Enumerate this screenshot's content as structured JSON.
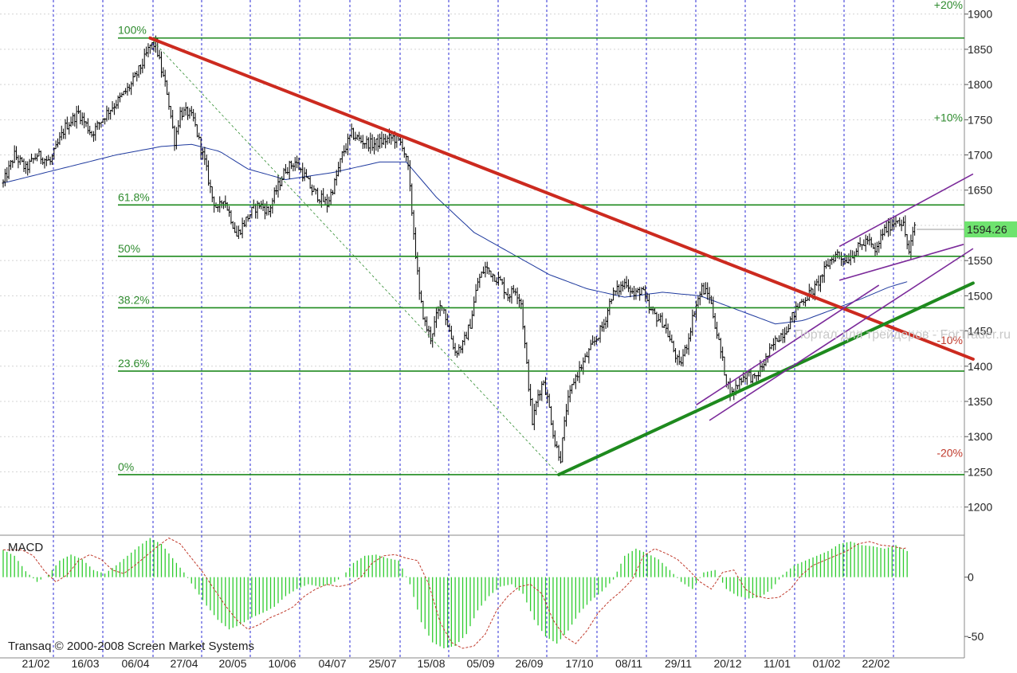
{
  "chart_data": {
    "type": "candlestick",
    "source_note": "Transaq © 2000-2008 Screen Market Systems",
    "watermark": "Портал для трейдеров - ForTrader.ru",
    "x_labels": [
      "21/02",
      "16/03",
      "06/04",
      "27/04",
      "20/05",
      "10/06",
      "04/07",
      "25/07",
      "15/08",
      "05/09",
      "26/09",
      "17/10",
      "08/11",
      "29/11",
      "20/12",
      "11/01",
      "01/02",
      "22/02"
    ],
    "price_axis": {
      "ylim": [
        1160,
        1920
      ],
      "ticks": [
        1200,
        1250,
        1300,
        1350,
        1400,
        1450,
        1500,
        1550,
        1600,
        1650,
        1700,
        1750,
        1800,
        1850,
        1900
      ]
    },
    "last_price": "1594.26",
    "percent_marks": [
      {
        "label": "+20%",
        "value": 1913,
        "sign": "pos"
      },
      {
        "label": "+10%",
        "value": 1753,
        "sign": "pos"
      },
      {
        "label": "-10%",
        "value": 1437,
        "sign": "neg"
      },
      {
        "label": "-20%",
        "value": 1277,
        "sign": "neg"
      }
    ],
    "fibonacci": [
      {
        "label": "100%",
        "value": 1866
      },
      {
        "label": "61.8%",
        "value": 1629
      },
      {
        "label": "50%",
        "value": 1556
      },
      {
        "label": "38.2%",
        "value": 1483
      },
      {
        "label": "23.6%",
        "value": 1393
      },
      {
        "label": "0%",
        "value": 1246
      }
    ],
    "series_anchors": [
      [
        0,
        1660
      ],
      [
        6,
        1700
      ],
      [
        12,
        1680
      ],
      [
        18,
        1700
      ],
      [
        25,
        1690
      ],
      [
        33,
        1740
      ],
      [
        40,
        1760
      ],
      [
        47,
        1730
      ],
      [
        55,
        1760
      ],
      [
        62,
        1780
      ],
      [
        68,
        1800
      ],
      [
        74,
        1830
      ],
      [
        78,
        1855
      ],
      [
        81,
        1858
      ],
      [
        84,
        1820
      ],
      [
        87,
        1790
      ],
      [
        91,
        1720
      ],
      [
        94,
        1760
      ],
      [
        98,
        1760
      ],
      [
        101,
        1750
      ],
      [
        104,
        1720
      ],
      [
        107,
        1690
      ],
      [
        111,
        1640
      ],
      [
        114,
        1620
      ],
      [
        117,
        1640
      ],
      [
        121,
        1610
      ],
      [
        124,
        1585
      ],
      [
        127,
        1600
      ],
      [
        132,
        1620
      ],
      [
        136,
        1630
      ],
      [
        141,
        1620
      ],
      [
        145,
        1650
      ],
      [
        150,
        1680
      ],
      [
        155,
        1690
      ],
      [
        160,
        1670
      ],
      [
        164,
        1650
      ],
      [
        168,
        1640
      ],
      [
        172,
        1630
      ],
      [
        176,
        1660
      ],
      [
        180,
        1700
      ],
      [
        185,
        1730
      ],
      [
        190,
        1720
      ],
      [
        196,
        1715
      ],
      [
        202,
        1720
      ],
      [
        207,
        1725
      ],
      [
        212,
        1715
      ],
      [
        215,
        1680
      ],
      [
        218,
        1590
      ],
      [
        221,
        1500
      ],
      [
        224,
        1460
      ],
      [
        227,
        1440
      ],
      [
        230,
        1470
      ],
      [
        233,
        1490
      ],
      [
        236,
        1460
      ],
      [
        240,
        1420
      ],
      [
        244,
        1430
      ],
      [
        248,
        1460
      ],
      [
        252,
        1520
      ],
      [
        256,
        1540
      ],
      [
        260,
        1530
      ],
      [
        264,
        1520
      ],
      [
        268,
        1500
      ],
      [
        272,
        1510
      ],
      [
        275,
        1490
      ],
      [
        278,
        1400
      ],
      [
        281,
        1320
      ],
      [
        284,
        1360
      ],
      [
        287,
        1380
      ],
      [
        290,
        1340
      ],
      [
        293,
        1290
      ],
      [
        296,
        1270
      ],
      [
        299,
        1340
      ],
      [
        303,
        1380
      ],
      [
        307,
        1400
      ],
      [
        311,
        1420
      ],
      [
        315,
        1440
      ],
      [
        319,
        1460
      ],
      [
        323,
        1500
      ],
      [
        327,
        1510
      ],
      [
        331,
        1520
      ],
      [
        335,
        1500
      ],
      [
        339,
        1510
      ],
      [
        343,
        1480
      ],
      [
        347,
        1470
      ],
      [
        351,
        1460
      ],
      [
        355,
        1430
      ],
      [
        359,
        1400
      ],
      [
        363,
        1430
      ],
      [
        367,
        1480
      ],
      [
        371,
        1510
      ],
      [
        375,
        1500
      ],
      [
        378,
        1460
      ],
      [
        381,
        1420
      ],
      [
        384,
        1380
      ],
      [
        387,
        1360
      ],
      [
        391,
        1380
      ],
      [
        395,
        1390
      ],
      [
        399,
        1380
      ],
      [
        403,
        1400
      ],
      [
        407,
        1420
      ],
      [
        411,
        1440
      ],
      [
        415,
        1450
      ],
      [
        419,
        1470
      ],
      [
        423,
        1490
      ],
      [
        427,
        1500
      ],
      [
        431,
        1510
      ],
      [
        435,
        1530
      ],
      [
        439,
        1550
      ],
      [
        443,
        1560
      ],
      [
        447,
        1550
      ],
      [
        451,
        1560
      ],
      [
        455,
        1570
      ],
      [
        459,
        1580
      ],
      [
        463,
        1560
      ],
      [
        467,
        1590
      ],
      [
        471,
        1600
      ],
      [
        475,
        1610
      ],
      [
        478,
        1600
      ],
      [
        481,
        1560
      ],
      [
        484,
        1600
      ]
    ],
    "moving_average_anchors": [
      [
        0,
        1660
      ],
      [
        30,
        1680
      ],
      [
        60,
        1700
      ],
      [
        84,
        1712
      ],
      [
        100,
        1715
      ],
      [
        115,
        1705
      ],
      [
        130,
        1680
      ],
      [
        150,
        1665
      ],
      [
        175,
        1675
      ],
      [
        200,
        1690
      ],
      [
        214,
        1690
      ],
      [
        230,
        1640
      ],
      [
        250,
        1590
      ],
      [
        270,
        1560
      ],
      [
        290,
        1530
      ],
      [
        310,
        1510
      ],
      [
        330,
        1498
      ],
      [
        350,
        1505
      ],
      [
        370,
        1500
      ],
      [
        390,
        1480
      ],
      [
        410,
        1460
      ],
      [
        425,
        1465
      ],
      [
        440,
        1480
      ],
      [
        455,
        1495
      ],
      [
        470,
        1512
      ],
      [
        480,
        1520
      ]
    ],
    "trendlines": [
      {
        "name": "resistance",
        "color": "#cc2a1f",
        "from": [
          78,
          1866
        ],
        "to": [
          515,
          1410
        ]
      },
      {
        "name": "support",
        "color": "#1e8a1e",
        "from": [
          295,
          1246
        ],
        "to": [
          515,
          1518
        ]
      }
    ],
    "channel_lines_color": "#7b2a9a",
    "macd": {
      "label": "MACD",
      "ylim": [
        -64,
        34
      ],
      "ticks": [
        0,
        -50
      ],
      "anchors": [
        [
          0,
          23
        ],
        [
          6,
          18
        ],
        [
          12,
          5
        ],
        [
          18,
          -4
        ],
        [
          24,
          2
        ],
        [
          30,
          14
        ],
        [
          36,
          19
        ],
        [
          42,
          15
        ],
        [
          48,
          6
        ],
        [
          54,
          3
        ],
        [
          60,
          10
        ],
        [
          66,
          18
        ],
        [
          72,
          26
        ],
        [
          78,
          33
        ],
        [
          84,
          28
        ],
        [
          90,
          16
        ],
        [
          96,
          4
        ],
        [
          102,
          -10
        ],
        [
          108,
          -24
        ],
        [
          114,
          -36
        ],
        [
          120,
          -44
        ],
        [
          126,
          -40
        ],
        [
          132,
          -34
        ],
        [
          138,
          -30
        ],
        [
          144,
          -25
        ],
        [
          150,
          -16
        ],
        [
          156,
          -10
        ],
        [
          162,
          -6
        ],
        [
          168,
          -8
        ],
        [
          174,
          -6
        ],
        [
          180,
          0
        ],
        [
          186,
          12
        ],
        [
          192,
          18
        ],
        [
          198,
          19
        ],
        [
          204,
          16
        ],
        [
          210,
          14
        ],
        [
          216,
          -6
        ],
        [
          222,
          -38
        ],
        [
          228,
          -55
        ],
        [
          234,
          -60
        ],
        [
          240,
          -58
        ],
        [
          246,
          -48
        ],
        [
          252,
          -28
        ],
        [
          258,
          -16
        ],
        [
          264,
          -8
        ],
        [
          270,
          -6
        ],
        [
          276,
          -14
        ],
        [
          282,
          -36
        ],
        [
          288,
          -50
        ],
        [
          294,
          -56
        ],
        [
          300,
          -45
        ],
        [
          306,
          -30
        ],
        [
          312,
          -20
        ],
        [
          318,
          -12
        ],
        [
          324,
          -2
        ],
        [
          330,
          18
        ],
        [
          336,
          24
        ],
        [
          342,
          20
        ],
        [
          348,
          15
        ],
        [
          354,
          6
        ],
        [
          360,
          -4
        ],
        [
          366,
          -10
        ],
        [
          372,
          4
        ],
        [
          378,
          6
        ],
        [
          384,
          -10
        ],
        [
          390,
          -16
        ],
        [
          396,
          -18
        ],
        [
          402,
          -17
        ],
        [
          408,
          -10
        ],
        [
          414,
          2
        ],
        [
          420,
          10
        ],
        [
          426,
          14
        ],
        [
          432,
          18
        ],
        [
          438,
          22
        ],
        [
          444,
          28
        ],
        [
          450,
          30
        ],
        [
          456,
          27
        ],
        [
          462,
          26
        ],
        [
          468,
          24
        ],
        [
          474,
          27
        ],
        [
          480,
          22
        ]
      ]
    },
    "y_label_units": "price"
  }
}
